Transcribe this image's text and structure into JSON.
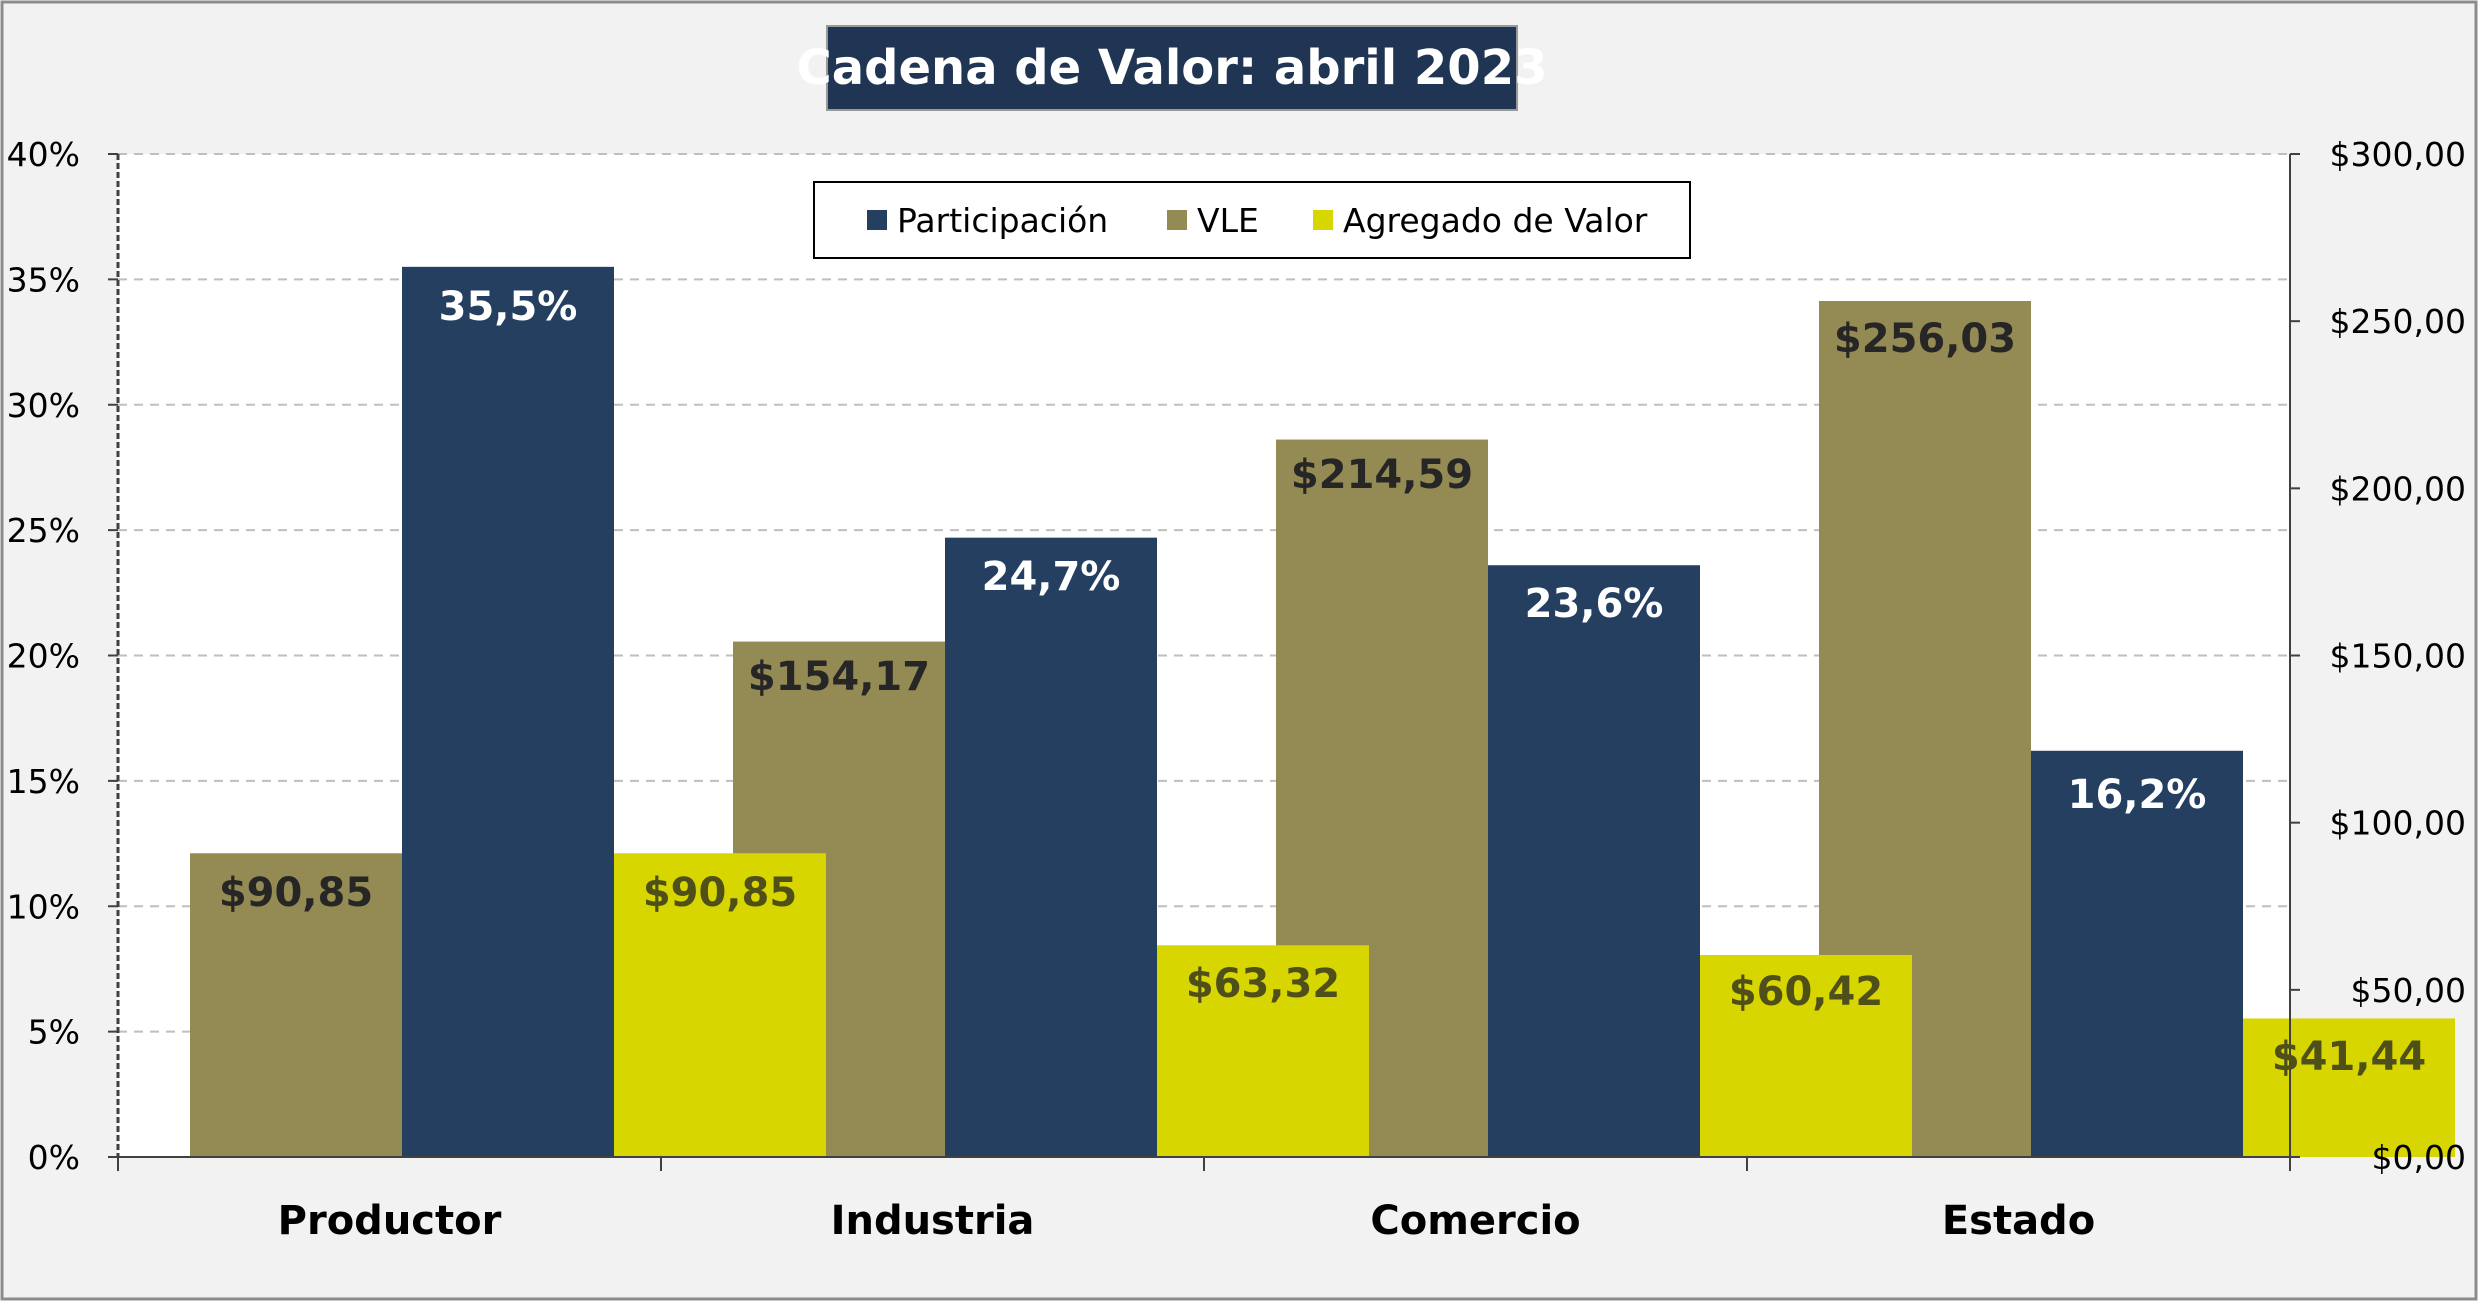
{
  "chart_data": {
    "type": "bar",
    "title": "Cadena de Valor: abril 2023",
    "categories": [
      "Productor",
      "Industria",
      "Comercio",
      "Estado"
    ],
    "series": [
      {
        "name": "Participación",
        "axis": "left",
        "values": [
          35.5,
          24.7,
          23.6,
          16.2
        ],
        "labels": [
          "35,5%",
          "24,7%",
          "23,6%",
          "16,2%"
        ],
        "color": "#243F60"
      },
      {
        "name": "VLE",
        "axis": "right",
        "values": [
          90.85,
          154.17,
          214.59,
          256.03
        ],
        "labels": [
          "$90,85",
          "$154,17",
          "$214,59",
          "$256,03"
        ],
        "color": "#948A54"
      },
      {
        "name": "Agregado de Valor",
        "axis": "right",
        "values": [
          90.85,
          63.32,
          60.42,
          41.44
        ],
        "labels": [
          "$90,85",
          "$63,32",
          "$60,42",
          "$41,44"
        ],
        "color": "#D8D600"
      }
    ],
    "y_left": {
      "range": [
        0,
        40
      ],
      "ticks": [
        "0%",
        "5%",
        "10%",
        "15%",
        "20%",
        "25%",
        "30%",
        "35%",
        "40%"
      ]
    },
    "y_right": {
      "range": [
        0,
        300
      ],
      "ticks": [
        "$0,00",
        "$50,00",
        "$100,00",
        "$150,00",
        "$200,00",
        "$250,00",
        "$300,00"
      ]
    },
    "legend": "top-center",
    "grid": true,
    "colors": {
      "background": "#F2F2F2",
      "plot": "#FFFFFF",
      "title_bg": "#1F3553",
      "title_text": "#FFFFFF",
      "label_light": "#FFFFFF",
      "label_dark": "#262626",
      "label_olive": "#4F4F1A"
    }
  }
}
